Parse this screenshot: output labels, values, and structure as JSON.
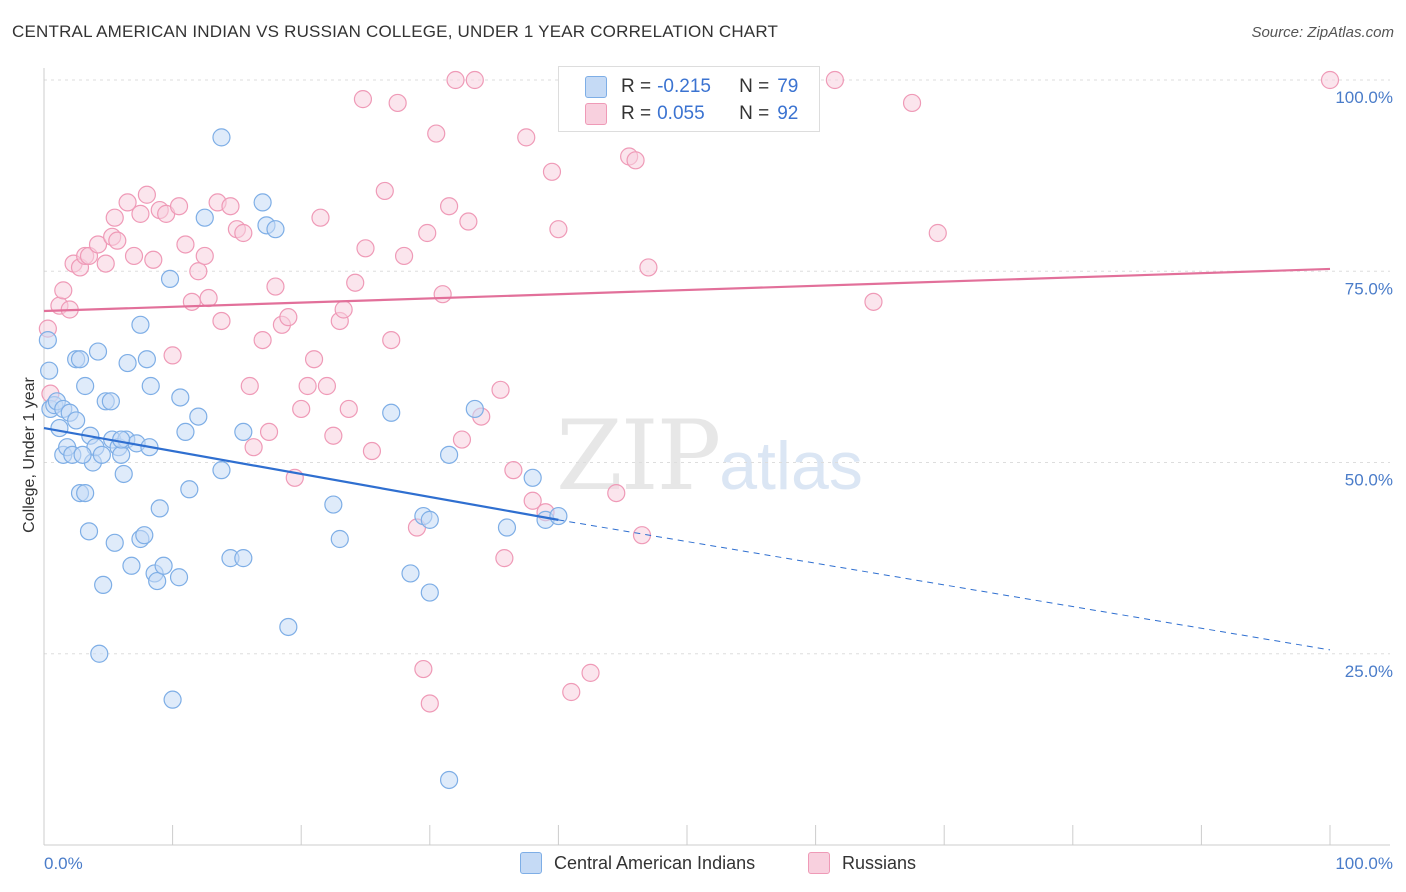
{
  "title": "CENTRAL AMERICAN INDIAN VS RUSSIAN COLLEGE, UNDER 1 YEAR CORRELATION CHART",
  "source": "Source: ZipAtlas.com",
  "watermark": {
    "zip": "ZIP",
    "atlas": "atlas"
  },
  "colors": {
    "blue": "#7eaee6",
    "blue_fill": "#c5daf5",
    "pink": "#ef9ab7",
    "pink_fill": "#f8d0de",
    "blue_line": "#2f6fd0",
    "pink_line": "#e2709a"
  },
  "legend": {
    "rows": [
      {
        "r_label": "R =",
        "r_value": "-0.215",
        "n_label": "N =",
        "n_value": "79",
        "color": "#c5daf5"
      },
      {
        "r_label": "R =",
        "r_value": "0.055",
        "n_label": "N =",
        "n_value": "92",
        "color": "#f8d0de"
      }
    ]
  },
  "bottom_legend": [
    "Central American Indians",
    "Russians"
  ],
  "chart_data": {
    "type": "scatter",
    "title": "CENTRAL AMERICAN INDIAN VS RUSSIAN COLLEGE, UNDER 1 YEAR CORRELATION CHART",
    "xlabel": "",
    "ylabel": "College, Under 1 year",
    "xlim": [
      0,
      100
    ],
    "ylim": [
      0,
      100
    ],
    "x_tick_labels": [
      "0.0%",
      "100.0%"
    ],
    "y_tick_labels": [
      "25.0%",
      "50.0%",
      "75.0%",
      "100.0%"
    ],
    "grid": true,
    "series": [
      {
        "name": "Central American Indians",
        "r": -0.215,
        "n": 79,
        "trend": {
          "x0": 0,
          "y0": 54.5,
          "x1": 40,
          "y1": 42.5,
          "dash_to": 100,
          "dash_y": 25.5
        },
        "points": [
          [
            0.3,
            66
          ],
          [
            0.4,
            62
          ],
          [
            0.5,
            57
          ],
          [
            0.8,
            57.5
          ],
          [
            1.0,
            58
          ],
          [
            1.2,
            54.5
          ],
          [
            1.5,
            57
          ],
          [
            1.5,
            51
          ],
          [
            1.8,
            52
          ],
          [
            2.0,
            56.5
          ],
          [
            2.2,
            51
          ],
          [
            2.5,
            55.5
          ],
          [
            2.5,
            63.5
          ],
          [
            2.8,
            63.5
          ],
          [
            2.8,
            46
          ],
          [
            3.2,
            46
          ],
          [
            3.2,
            60
          ],
          [
            3.5,
            41
          ],
          [
            3.6,
            53.5
          ],
          [
            3.8,
            50
          ],
          [
            4.0,
            52
          ],
          [
            4.2,
            64.5
          ],
          [
            4.3,
            25
          ],
          [
            4.5,
            51
          ],
          [
            4.6,
            34
          ],
          [
            4.8,
            58
          ],
          [
            5.2,
            58
          ],
          [
            5.3,
            53
          ],
          [
            5.5,
            39.5
          ],
          [
            5.8,
            52
          ],
          [
            6.0,
            51
          ],
          [
            6.2,
            48.5
          ],
          [
            6.4,
            53
          ],
          [
            6.5,
            63
          ],
          [
            6.8,
            36.5
          ],
          [
            7.2,
            52.5
          ],
          [
            7.5,
            68
          ],
          [
            7.5,
            40
          ],
          [
            7.8,
            40.5
          ],
          [
            8.0,
            63.5
          ],
          [
            8.2,
            52
          ],
          [
            8.3,
            60
          ],
          [
            8.6,
            35.5
          ],
          [
            8.8,
            34.5
          ],
          [
            9.0,
            44
          ],
          [
            9.3,
            36.5
          ],
          [
            9.8,
            74
          ],
          [
            10.0,
            19
          ],
          [
            10.5,
            35
          ],
          [
            10.6,
            58.5
          ],
          [
            11.0,
            54
          ],
          [
            11.3,
            46.5
          ],
          [
            12.0,
            56
          ],
          [
            12.5,
            82
          ],
          [
            13.8,
            92.5
          ],
          [
            13.8,
            49
          ],
          [
            14.5,
            37.5
          ],
          [
            15.5,
            37.5
          ],
          [
            15.5,
            54
          ],
          [
            17.0,
            84
          ],
          [
            17.3,
            81
          ],
          [
            18.0,
            80.5
          ],
          [
            19.0,
            28.5
          ],
          [
            22.5,
            44.5
          ],
          [
            23.0,
            40
          ],
          [
            27.0,
            56.5
          ],
          [
            28.5,
            35.5
          ],
          [
            29.5,
            43
          ],
          [
            30.0,
            42.5
          ],
          [
            30.0,
            33
          ],
          [
            31.5,
            8.5
          ],
          [
            31.5,
            51
          ],
          [
            33.5,
            57
          ],
          [
            36.0,
            41.5
          ],
          [
            38.0,
            48
          ],
          [
            39.0,
            42.5
          ],
          [
            40.0,
            43
          ],
          [
            3.0,
            51
          ],
          [
            6.0,
            53
          ]
        ]
      },
      {
        "name": "Russians",
        "r": 0.055,
        "n": 92,
        "trend": {
          "x0": 0,
          "y0": 69.8,
          "x1": 100,
          "y1": 75.3
        },
        "points": [
          [
            0.3,
            67.5
          ],
          [
            0.5,
            59
          ],
          [
            1.2,
            70.5
          ],
          [
            1.5,
            72.5
          ],
          [
            2.0,
            70
          ],
          [
            2.3,
            76
          ],
          [
            2.8,
            75.5
          ],
          [
            3.2,
            77
          ],
          [
            3.5,
            77
          ],
          [
            4.2,
            78.5
          ],
          [
            4.8,
            76
          ],
          [
            5.3,
            79.5
          ],
          [
            5.5,
            82
          ],
          [
            5.7,
            79
          ],
          [
            6.5,
            84
          ],
          [
            7.0,
            77
          ],
          [
            7.5,
            82.5
          ],
          [
            8.0,
            85
          ],
          [
            8.5,
            76.5
          ],
          [
            9.0,
            83
          ],
          [
            9.5,
            82.5
          ],
          [
            10.0,
            64
          ],
          [
            10.5,
            83.5
          ],
          [
            11.0,
            78.5
          ],
          [
            11.5,
            71
          ],
          [
            12.0,
            75
          ],
          [
            12.5,
            77
          ],
          [
            12.8,
            71.5
          ],
          [
            13.5,
            84
          ],
          [
            13.8,
            68.5
          ],
          [
            14.5,
            83.5
          ],
          [
            15.0,
            80.5
          ],
          [
            15.5,
            80
          ],
          [
            16.0,
            60
          ],
          [
            16.3,
            52
          ],
          [
            17.0,
            66
          ],
          [
            17.5,
            54
          ],
          [
            18.0,
            73
          ],
          [
            18.5,
            68
          ],
          [
            19.0,
            69
          ],
          [
            19.5,
            48
          ],
          [
            20.0,
            57
          ],
          [
            20.5,
            60
          ],
          [
            21.0,
            63.5
          ],
          [
            21.5,
            82
          ],
          [
            22.0,
            60
          ],
          [
            22.5,
            53.5
          ],
          [
            23.0,
            68.5
          ],
          [
            23.3,
            70
          ],
          [
            23.7,
            57
          ],
          [
            24.2,
            73.5
          ],
          [
            24.8,
            97.5
          ],
          [
            25.0,
            78
          ],
          [
            25.5,
            51.5
          ],
          [
            26.5,
            85.5
          ],
          [
            27.0,
            66
          ],
          [
            27.5,
            97
          ],
          [
            28.0,
            77
          ],
          [
            29.5,
            23
          ],
          [
            29.8,
            80
          ],
          [
            30.0,
            18.5
          ],
          [
            30.5,
            93
          ],
          [
            31.0,
            72
          ],
          [
            31.5,
            83.5
          ],
          [
            32.0,
            100
          ],
          [
            32.5,
            53
          ],
          [
            33.0,
            81.5
          ],
          [
            33.5,
            100
          ],
          [
            34.0,
            56
          ],
          [
            35.5,
            59.5
          ],
          [
            35.8,
            37.5
          ],
          [
            36.5,
            49
          ],
          [
            37.5,
            92.5
          ],
          [
            38.0,
            45
          ],
          [
            39.0,
            43.5
          ],
          [
            39.5,
            88
          ],
          [
            40.0,
            80.5
          ],
          [
            41.0,
            20
          ],
          [
            42.5,
            22.5
          ],
          [
            43.0,
            100
          ],
          [
            44.5,
            46
          ],
          [
            45.5,
            90
          ],
          [
            46.0,
            89.5
          ],
          [
            46.5,
            40.5
          ],
          [
            47.0,
            75.5
          ],
          [
            59.5,
            100
          ],
          [
            61.5,
            100
          ],
          [
            64.5,
            71
          ],
          [
            67.5,
            97
          ],
          [
            69.5,
            80
          ],
          [
            100.0,
            100
          ],
          [
            29.0,
            41.5
          ]
        ]
      }
    ]
  }
}
